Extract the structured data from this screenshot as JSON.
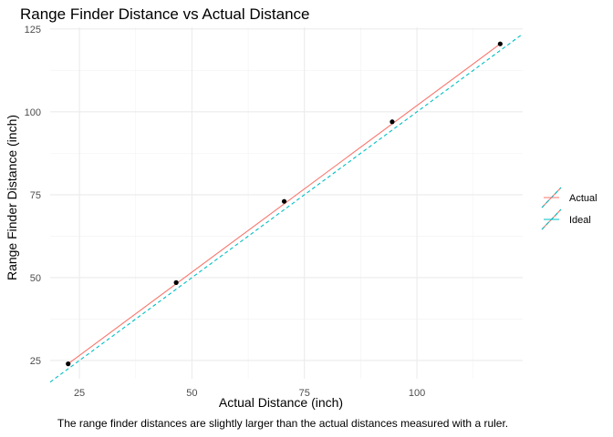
{
  "chart_data": {
    "type": "scatter",
    "title": "Range Finder Distance vs Actual Distance",
    "xlabel": "Actual Distance (inch)",
    "ylabel": "Range Finder Distance (inch)",
    "caption": "The range finder distances are slightly larger than the actual distances measured with a ruler.",
    "xlim": [
      18.5,
      123.5
    ],
    "ylim": [
      19.5,
      125.5
    ],
    "x_ticks": [
      25,
      50,
      75,
      100
    ],
    "y_ticks": [
      25,
      50,
      75,
      100,
      125
    ],
    "grid": true,
    "legend_position": "right",
    "points": {
      "x": [
        22.5,
        46.5,
        70.5,
        94.5,
        118.5
      ],
      "y": [
        24,
        48.5,
        73,
        97,
        120.5
      ],
      "color": "#000000"
    },
    "series": [
      {
        "name": "Actual",
        "style": "solid",
        "color": "#F8766D",
        "x": [
          22.5,
          118.5
        ],
        "y": [
          24,
          120.5
        ]
      },
      {
        "name": "Ideal",
        "style": "dashed",
        "color": "#00BFC4",
        "x": [
          18.5,
          123.5
        ],
        "y": [
          18.5,
          123.5
        ]
      }
    ]
  }
}
